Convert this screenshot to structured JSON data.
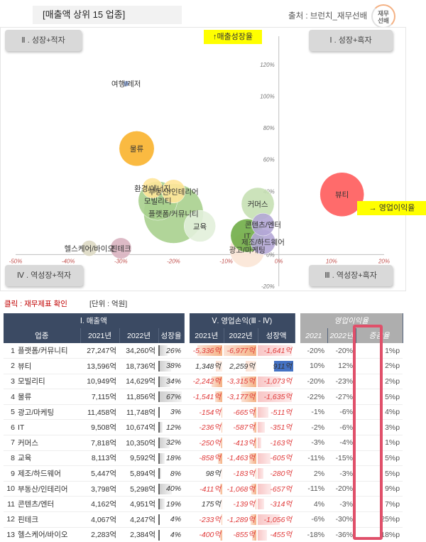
{
  "header": {
    "title": "[매출액 상위 15 업종]",
    "source": "출처 : 브런치_재무선배",
    "logo_text_1": "재무",
    "logo_text_2": "선배"
  },
  "quadrants": {
    "q2": "Ⅱ . 성장+적자",
    "q1": "Ⅰ . 성장+흑자",
    "q4": "Ⅳ . 역성장+적자",
    "q3": "Ⅲ . 역성장+흑자"
  },
  "axis_tags": {
    "y": "↑매출성장율",
    "x": "→ 영업이익율"
  },
  "chart_data": {
    "type": "scatter",
    "title": "",
    "xlabel": "영업이익율",
    "ylabel": "매출성장율",
    "xlim": [
      -50,
      20
    ],
    "ylim": [
      -20,
      120
    ],
    "x_ticks": [
      "-50%",
      "-40%",
      "-30%",
      "-20%",
      "-10%",
      "0%",
      "10%",
      "20%"
    ],
    "y_ticks": [
      "-20%",
      "0%",
      "20%",
      "40%",
      "60%",
      "80%",
      "100%",
      "120%"
    ],
    "points": [
      {
        "name": "여행/레저",
        "x": -29,
        "y": 108,
        "size": 1,
        "color": "#8ea9db"
      },
      {
        "name": "물류",
        "x": -27,
        "y": 67,
        "size": 11856,
        "color": "#f9b32c"
      },
      {
        "name": "환경/에너지",
        "x": -24,
        "y": 42,
        "size": 4000,
        "color": "#ffe699"
      },
      {
        "name": "부동산/인테리어",
        "x": -20,
        "y": 40,
        "size": 5298,
        "color": "#ffe699"
      },
      {
        "name": "모빌리티",
        "x": -23,
        "y": 34,
        "size": 14629,
        "color": "#a9d08e"
      },
      {
        "name": "플랫폼/커뮤니티",
        "x": -20,
        "y": 26,
        "size": 34260,
        "color": "#a9d08e"
      },
      {
        "name": "교육",
        "x": -15,
        "y": 18,
        "size": 9592,
        "color": "#e2efda"
      },
      {
        "name": "헬스케어/바이오",
        "x": -36,
        "y": 4,
        "size": 2384,
        "color": "#ddd9c3"
      },
      {
        "name": "핀테크",
        "x": -30,
        "y": 4,
        "size": 4247,
        "color": "#d9b3c0"
      },
      {
        "name": "커머스",
        "x": -4,
        "y": 32,
        "size": 10350,
        "color": "#c6e0b4"
      },
      {
        "name": "콘텐츠/엔터",
        "x": -3,
        "y": 19,
        "size": 4951,
        "color": "#b4a7d6"
      },
      {
        "name": "IT",
        "x": -6,
        "y": 12,
        "size": 10674,
        "color": "#70ad47"
      },
      {
        "name": "제조/하드웨어",
        "x": -3,
        "y": 8,
        "size": 5894,
        "color": "#b4a7d6"
      },
      {
        "name": "광고/마케팅",
        "x": -6,
        "y": 3,
        "size": 11748,
        "color": "#fbe5d6"
      },
      {
        "name": "뷰티",
        "x": 12,
        "y": 38,
        "size": 18736,
        "color": "#ff5b5b"
      }
    ]
  },
  "notes": {
    "click": "클릭 : 재무제표 확인",
    "unit": "[단위 : 억원]"
  },
  "table": {
    "group_headers": [
      "Ⅰ. 매출액",
      "Ⅴ. 영업손익(Ⅲ - Ⅳ)",
      "영업이익율"
    ],
    "col_headers": [
      "업종",
      "2021년",
      "2022년",
      "성장율",
      "2021년",
      "2022년",
      "성장액",
      "2021",
      "2022년",
      "증감율"
    ],
    "rows": [
      {
        "no": "1",
        "name": "플랫폼/커뮤니티",
        "s21": "27,247억",
        "s22": "34,260억",
        "g": "26%",
        "g_val": 26,
        "o21": "-5,336억",
        "o22": "-6,977억",
        "d": "-1,641억",
        "d_val": -1641,
        "m21": "-20%",
        "m22": "-20%",
        "mr": "1%p"
      },
      {
        "no": "2",
        "name": "뷰티",
        "s21": "13,596억",
        "s22": "18,736억",
        "g": "38%",
        "g_val": 38,
        "o21": "1,348억",
        "o22": "2,259억",
        "d": "911억",
        "d_val": 911,
        "m21": "10%",
        "m22": "12%",
        "mr": "2%p"
      },
      {
        "no": "3",
        "name": "모빌리티",
        "s21": "10,949억",
        "s22": "14,629억",
        "g": "34%",
        "g_val": 34,
        "o21": "-2,242억",
        "o22": "-3,315억",
        "d": "-1,073억",
        "d_val": -1073,
        "m21": "-20%",
        "m22": "-23%",
        "mr": "2%p"
      },
      {
        "no": "4",
        "name": "물류",
        "s21": "7,115억",
        "s22": "11,856억",
        "g": "67%",
        "g_val": 67,
        "o21": "-1,541억",
        "o22": "-3,177억",
        "d": "-1,635억",
        "d_val": -1635,
        "m21": "-22%",
        "m22": "-27%",
        "mr": "5%p"
      },
      {
        "no": "5",
        "name": "광고/마케팅",
        "s21": "11,458억",
        "s22": "11,748억",
        "g": "3%",
        "g_val": 3,
        "o21": "-154억",
        "o22": "-665억",
        "d": "-511억",
        "d_val": -511,
        "m21": "-1%",
        "m22": "-6%",
        "mr": "4%p"
      },
      {
        "no": "6",
        "name": "IT",
        "s21": "9,508억",
        "s22": "10,674억",
        "g": "12%",
        "g_val": 12,
        "o21": "-236억",
        "o22": "-587억",
        "d": "-351억",
        "d_val": -351,
        "m21": "-2%",
        "m22": "-6%",
        "mr": "3%p"
      },
      {
        "no": "7",
        "name": "커머스",
        "s21": "7,818억",
        "s22": "10,350억",
        "g": "32%",
        "g_val": 32,
        "o21": "-250억",
        "o22": "-413억",
        "d": "-163억",
        "d_val": -163,
        "m21": "-3%",
        "m22": "-4%",
        "mr": "1%p"
      },
      {
        "no": "8",
        "name": "교육",
        "s21": "8,113억",
        "s22": "9,592억",
        "g": "18%",
        "g_val": 18,
        "o21": "-858억",
        "o22": "-1,463억",
        "d": "-605억",
        "d_val": -605,
        "m21": "-11%",
        "m22": "-15%",
        "mr": "5%p"
      },
      {
        "no": "9",
        "name": "제조/하드웨어",
        "s21": "5,447억",
        "s22": "5,894억",
        "g": "8%",
        "g_val": 8,
        "o21": "98억",
        "o22": "-183억",
        "d": "-280억",
        "d_val": -280,
        "m21": "2%",
        "m22": "-3%",
        "mr": "5%p"
      },
      {
        "no": "10",
        "name": "부동산/인테리어",
        "s21": "3,798억",
        "s22": "5,298억",
        "g": "40%",
        "g_val": 40,
        "o21": "-411억",
        "o22": "-1,068억",
        "d": "-657억",
        "d_val": -657,
        "m21": "-11%",
        "m22": "-20%",
        "mr": "9%p"
      },
      {
        "no": "11",
        "name": "콘텐츠/엔터",
        "s21": "4,162억",
        "s22": "4,951억",
        "g": "19%",
        "g_val": 19,
        "o21": "175억",
        "o22": "-139억",
        "d": "-314억",
        "d_val": -314,
        "m21": "4%",
        "m22": "-3%",
        "mr": "7%p"
      },
      {
        "no": "12",
        "name": "핀테크",
        "s21": "4,067억",
        "s22": "4,247억",
        "g": "4%",
        "g_val": 4,
        "o21": "-233억",
        "o22": "-1,289억",
        "d": "-1,056억",
        "d_val": -1056,
        "m21": "-6%",
        "m22": "-30%",
        "mr": "25%p"
      },
      {
        "no": "13",
        "name": "헬스케어/바이오",
        "s21": "2,283억",
        "s22": "2,384억",
        "g": "4%",
        "g_val": 4,
        "o21": "-400억",
        "o22": "-855억",
        "d": "-455억",
        "d_val": -455,
        "m21": "-18%",
        "m22": "-36%",
        "mr": "18%p"
      }
    ]
  },
  "colors": {
    "header_dark": "#3b4a63",
    "header_op": "#aeaeae",
    "negative": "#e03b3b",
    "pos_bar": "#4472c4",
    "highlight": "#e0506a"
  }
}
